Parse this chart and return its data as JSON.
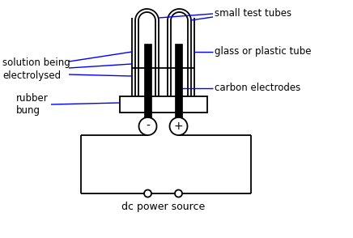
{
  "bg_color": "#ffffff",
  "line_color": "#000000",
  "blue_color": "#0000ff",
  "labels": {
    "small_test_tubes": "small test tubes",
    "glass_or_plastic_tube": "glass or plastic tube",
    "solution_being_electrolysed": "solution being\nelectrolysed",
    "carbon_electrodes": "carbon electrodes",
    "rubber_bung": "rubber\nbung",
    "dc_power_source": "dc power source",
    "minus": "-",
    "plus": "+"
  },
  "figsize": [
    4.36,
    2.94
  ],
  "dpi": 100
}
